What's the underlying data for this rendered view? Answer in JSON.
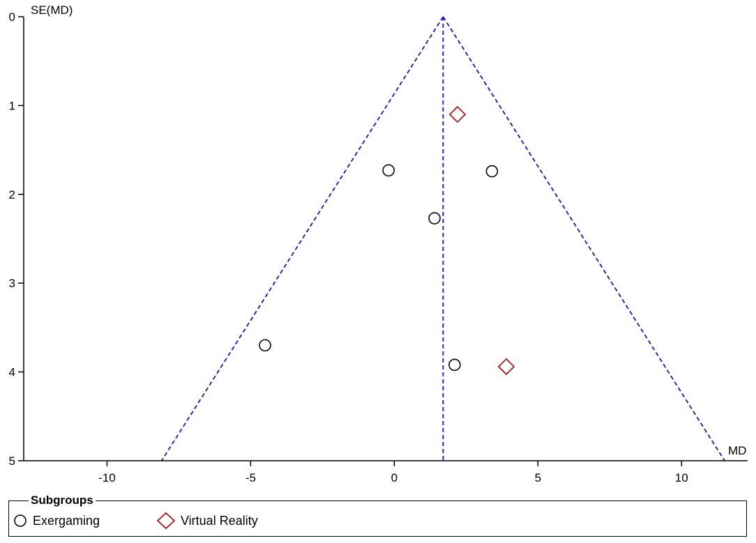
{
  "chart_data": {
    "type": "scatter",
    "title": "",
    "xlabel": "MD",
    "ylabel": "SE(MD)",
    "xlim": [
      -12.9,
      12.3
    ],
    "ylim": [
      0,
      5
    ],
    "y_inverted": true,
    "xticks": [
      -10,
      -5,
      0,
      5,
      10
    ],
    "xtick_labels": [
      "-10",
      "-5",
      "0",
      "5",
      "10"
    ],
    "yticks": [
      0,
      1,
      2,
      3,
      4,
      5
    ],
    "ytick_labels": [
      "0",
      "1",
      "2",
      "3",
      "4",
      "5"
    ],
    "grid": false,
    "legend_position": "bottom",
    "pooled_md": 1.7,
    "funnel_lines": "pseudo 95% confidence limits: MD ± 1.96 × SE(MD)",
    "series": [
      {
        "name": "Exergaming",
        "marker": "circle",
        "color": "#000000",
        "points": [
          {
            "x": -0.2,
            "y": 1.73
          },
          {
            "x": 3.4,
            "y": 1.74
          },
          {
            "x": 1.4,
            "y": 2.27
          },
          {
            "x": -4.5,
            "y": 3.7
          },
          {
            "x": 2.1,
            "y": 3.92
          }
        ]
      },
      {
        "name": "Virtual Reality",
        "marker": "diamond",
        "color": "#b00000",
        "points": [
          {
            "x": 2.2,
            "y": 1.1
          },
          {
            "x": 3.9,
            "y": 3.94
          }
        ]
      }
    ]
  },
  "legend": {
    "title": "Subgroups",
    "items": [
      {
        "label": "Exergaming",
        "marker": "circle",
        "color": "#000000"
      },
      {
        "label": "Virtual Reality",
        "marker": "diamond",
        "color": "#b00000"
      }
    ]
  },
  "colors": {
    "funnel_line": "#1414b4",
    "axis": "#000000"
  }
}
